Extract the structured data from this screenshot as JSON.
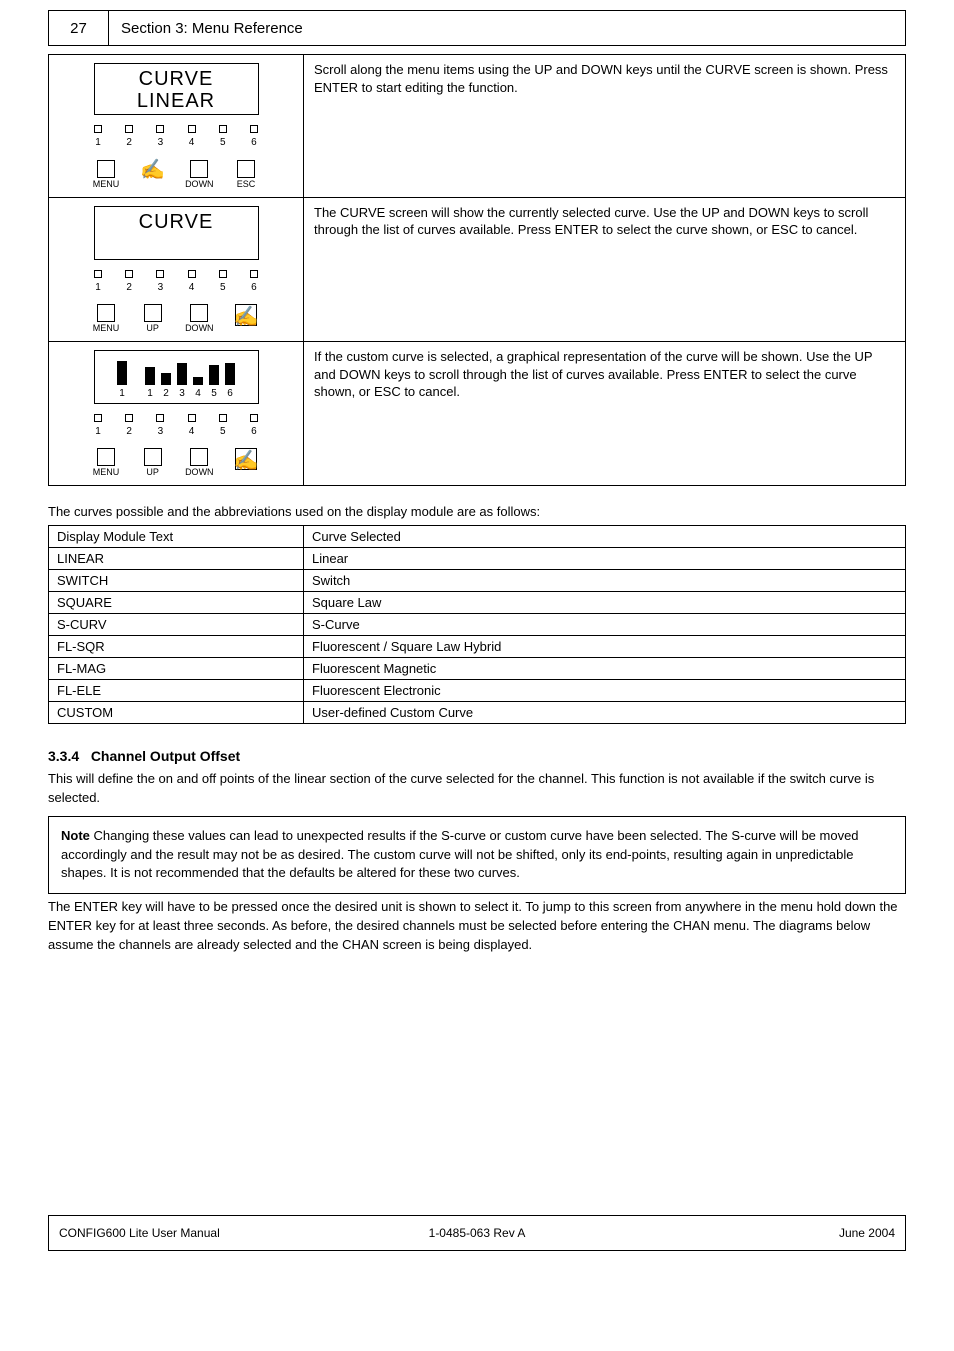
{
  "page": {
    "top_tab": "27",
    "top_title": "Section 3: Menu Reference",
    "footer_left": "CONFIG600 Lite User Manual",
    "footer_mid": "1-0485-063 Rev A",
    "footer_right": "June 2004"
  },
  "rows": [
    {
      "lcd_line1": "CURVE",
      "lcd_line2": "LINEAR",
      "indicators": [
        "1",
        "2",
        "3",
        "4",
        "5",
        "6"
      ],
      "buttons": [
        {
          "label": "MENU",
          "highlight": false,
          "hand": false
        },
        {
          "label": "",
          "highlight": false,
          "hand": true
        },
        {
          "label": "DOWN",
          "highlight": false,
          "hand": false
        },
        {
          "label": "ESC",
          "highlight": false,
          "hand": false
        }
      ],
      "desc": "Scroll along the menu items using the UP and DOWN keys until the CURVE screen is shown. Press ENTER to start editing the function."
    },
    {
      "lcd_line1": "CURVE",
      "lcd_line2": "",
      "indicators": [
        "1",
        "2",
        "3",
        "4",
        "5",
        "6"
      ],
      "buttons": [
        {
          "label": "MENU",
          "highlight": false,
          "hand": false
        },
        {
          "label": "UP",
          "highlight": false,
          "hand": false
        },
        {
          "label": "DOWN",
          "highlight": false,
          "hand": false
        },
        {
          "label": "",
          "highlight": true,
          "hand": true
        }
      ],
      "desc": "The CURVE screen will show the currently selected curve. Use the UP and DOWN keys to scroll through the list of curves available. Press ENTER to select the curve shown, or ESC to cancel."
    },
    {
      "eq_heights": [
        24,
        18,
        12,
        22,
        8,
        20,
        22
      ],
      "eq_labels": [
        "1",
        "",
        "1",
        "2",
        "3",
        "4",
        "5",
        "6"
      ],
      "indicators": [
        "1",
        "2",
        "3",
        "4",
        "5",
        "6"
      ],
      "buttons": [
        {
          "label": "MENU",
          "highlight": false,
          "hand": false
        },
        {
          "label": "UP",
          "highlight": false,
          "hand": false
        },
        {
          "label": "DOWN",
          "highlight": false,
          "hand": false
        },
        {
          "label": "",
          "highlight": true,
          "hand": true
        }
      ],
      "desc": "If the custom curve is selected, a graphical representation of the curve will be shown. Use the UP and DOWN keys to scroll through the list of curves available. Press ENTER to select the curve shown, or ESC to cancel."
    }
  ],
  "map_intro": "The curves possible and the abbreviations used on the display module are as follows:",
  "map_table": {
    "headers": [
      "Display Module Text",
      "Curve Selected"
    ],
    "rows": [
      [
        "LINEAR",
        "Linear"
      ],
      [
        "SWITCH",
        "Switch"
      ],
      [
        "SQUARE",
        "Square Law"
      ],
      [
        "S-CURV",
        "S-Curve"
      ],
      [
        "FL-SQR",
        "Fluorescent / Square Law Hybrid"
      ],
      [
        "FL-MAG",
        "Fluorescent Magnetic"
      ],
      [
        "FL-ELE",
        "Fluorescent Electronic"
      ],
      [
        "CUSTOM",
        "User-defined Custom Curve"
      ]
    ]
  },
  "offset": {
    "heading_num": "3.3.4",
    "heading_text": "Channel Output Offset",
    "p1": "This will define the on and off points of the linear section of the curve selected for the channel. This function is not available if the switch curve is selected.",
    "note_label": "Note",
    "note_text": "Changing these values can lead to unexpected results if the S-curve or custom curve have been selected. The S-curve will be moved accordingly and the result may not be as desired. The custom curve will not be shifted, only its end-points, resulting again in unpredictable shapes. It is not recommended that the defaults be altered for these two curves.",
    "p2": "The ENTER key will have to be pressed once the desired unit is shown to select it. To jump to this screen from anywhere in the menu hold down the ENTER key for at least three seconds. As before, the desired channels must be selected before entering the CHAN menu. The diagrams below assume the channels are already selected and the CHAN screen is being displayed."
  }
}
